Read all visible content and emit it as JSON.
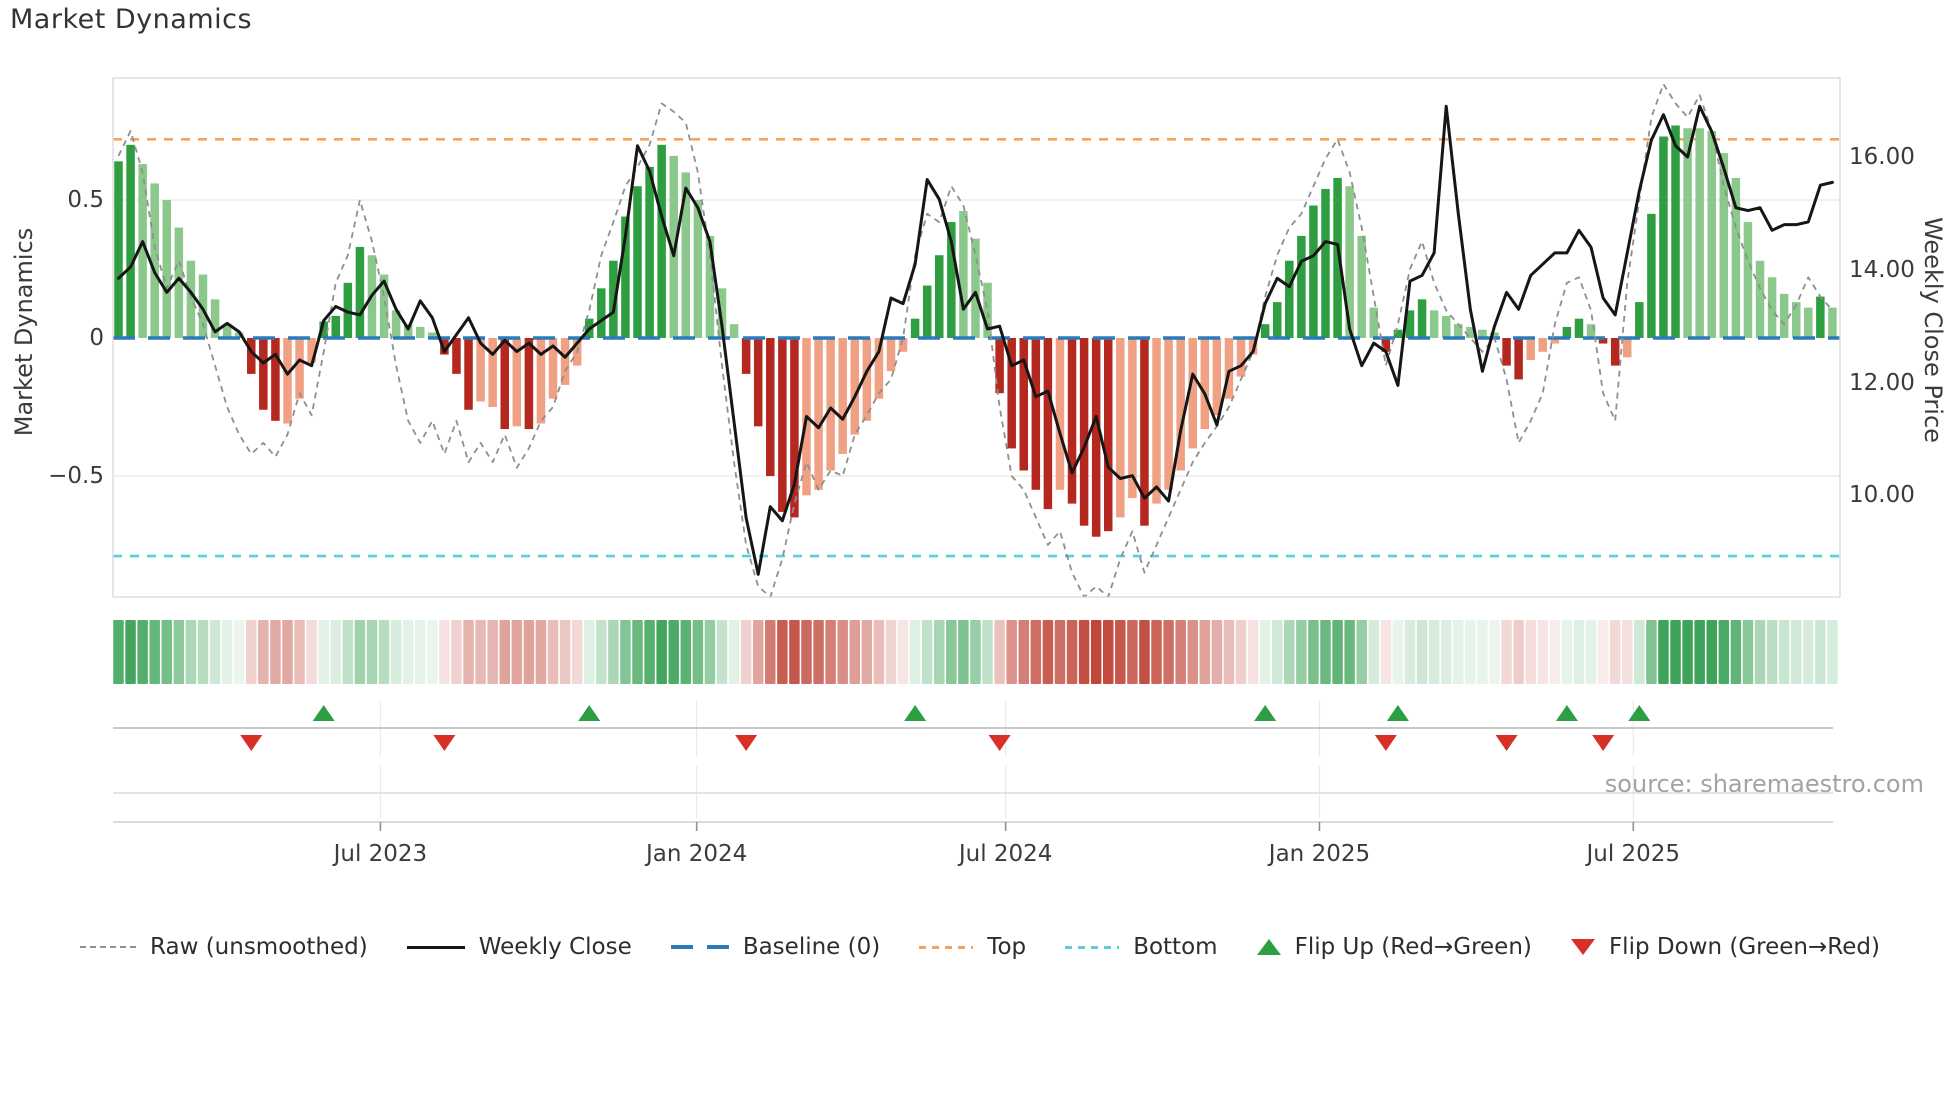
{
  "title": "Market Dynamics",
  "source": "source: sharemaestro.com",
  "axes": {
    "left_label": "Market Dynamics",
    "right_label": "Weekly Close Price",
    "left_ticks": [
      {
        "label": "0.5",
        "value": 0.5
      },
      {
        "label": "0",
        "value": 0
      },
      {
        "label": "−0.5",
        "value": -0.5
      }
    ],
    "right_ticks": [
      {
        "label": "16.00",
        "value": 16
      },
      {
        "label": "14.00",
        "value": 14
      },
      {
        "label": "12.00",
        "value": 12
      },
      {
        "label": "10.00",
        "value": 10
      }
    ],
    "x_ticks": [
      {
        "label": "Jul 2023",
        "week": 21.7
      },
      {
        "label": "Jan 2024",
        "week": 47.9
      },
      {
        "label": "Jul 2024",
        "week": 73.5
      },
      {
        "label": "Jan 2025",
        "week": 99.5
      },
      {
        "label": "Jul 2025",
        "week": 125.5
      }
    ]
  },
  "legend": {
    "items": [
      {
        "label": "Raw (unsmoothed)",
        "type": "dashed-gray-line"
      },
      {
        "label": "Weekly Close",
        "type": "solid-black-line"
      },
      {
        "label": "Baseline (0)",
        "type": "dashed-blue-line"
      },
      {
        "label": "Top",
        "type": "dotted-orange-line"
      },
      {
        "label": "Bottom",
        "type": "dotted-cyan-line"
      },
      {
        "label": "Flip Up (Red→Green)",
        "type": "green-up-triangle"
      },
      {
        "label": "Flip Down (Green→Red)",
        "type": "red-down-triangle"
      }
    ]
  },
  "colors": {
    "dark_green": "#2e9e41",
    "light_green": "#8bc88b",
    "dark_red": "#b4281f",
    "light_red": "#f0a183",
    "heat_green": "#3fa45a",
    "heat_red": "#c0473a",
    "price_line": "#161616",
    "raw_line": "#8f8f8f",
    "baseline": "#2b7bba",
    "top_line": "#f6a35c",
    "bottom_line": "#56cfe3",
    "flip_up": "#2e9e44",
    "flip_down": "#d93025",
    "grid": "#ececeb",
    "spine": "#d9d9d9"
  },
  "chart_data": {
    "type": "combo: weekly oscillator bars + heatmap strip + flip markers + price lines",
    "weeks": 143,
    "x_unit": "week",
    "baseline_value": 0,
    "top_band": 0.72,
    "bottom_band": -0.79,
    "left_axis_range": [
      -0.95,
      1.0
    ],
    "right_axis_range": [
      8.4,
      17.4
    ],
    "oscillator": [
      0.64,
      0.7,
      0.63,
      0.56,
      0.5,
      0.4,
      0.28,
      0.23,
      0.14,
      0.05,
      0.02,
      -0.13,
      -0.26,
      -0.3,
      -0.31,
      -0.22,
      -0.09,
      0.06,
      0.08,
      0.2,
      0.33,
      0.3,
      0.23,
      0.1,
      0.05,
      0.04,
      0.02,
      -0.06,
      -0.13,
      -0.26,
      -0.23,
      -0.25,
      -0.33,
      -0.32,
      -0.33,
      -0.31,
      -0.22,
      -0.17,
      -0.1,
      0.07,
      0.18,
      0.28,
      0.44,
      0.55,
      0.62,
      0.7,
      0.66,
      0.6,
      0.5,
      0.37,
      0.18,
      0.05,
      -0.13,
      -0.32,
      -0.5,
      -0.63,
      -0.65,
      -0.57,
      -0.55,
      -0.48,
      -0.42,
      -0.35,
      -0.3,
      -0.22,
      -0.12,
      -0.05,
      0.07,
      0.19,
      0.3,
      0.42,
      0.46,
      0.36,
      0.2,
      -0.2,
      -0.4,
      -0.48,
      -0.55,
      -0.62,
      -0.55,
      -0.6,
      -0.68,
      -0.72,
      -0.7,
      -0.65,
      -0.58,
      -0.68,
      -0.6,
      -0.55,
      -0.48,
      -0.4,
      -0.33,
      -0.28,
      -0.22,
      -0.14,
      -0.06,
      0.05,
      0.13,
      0.28,
      0.37,
      0.48,
      0.54,
      0.58,
      0.55,
      0.37,
      0.11,
      -0.05,
      0.03,
      0.1,
      0.14,
      0.1,
      0.08,
      0.05,
      0.04,
      0.03,
      0.02,
      -0.1,
      -0.15,
      -0.08,
      -0.05,
      -0.02,
      0.04,
      0.07,
      0.05,
      -0.02,
      -0.1,
      -0.07,
      0.13,
      0.45,
      0.73,
      0.77,
      0.76,
      0.76,
      0.75,
      0.67,
      0.58,
      0.42,
      0.28,
      0.22,
      0.16,
      0.13,
      0.11,
      0.15,
      0.11
    ],
    "shades": [
      "dg",
      "dg",
      "lg",
      "lg",
      "lg",
      "lg",
      "lg",
      "lg",
      "lg",
      "lg",
      "lg",
      "dr",
      "dr",
      "dr",
      "lr",
      "lr",
      "lr",
      "dg",
      "dg",
      "dg",
      "dg",
      "lg",
      "lg",
      "lg",
      "lg",
      "lg",
      "lg",
      "dr",
      "dr",
      "dr",
      "lr",
      "lr",
      "dr",
      "lr",
      "dr",
      "lr",
      "lr",
      "lr",
      "lr",
      "dg",
      "dg",
      "dg",
      "dg",
      "dg",
      "dg",
      "dg",
      "lg",
      "lg",
      "lg",
      "lg",
      "lg",
      "lg",
      "dr",
      "dr",
      "dr",
      "dr",
      "dr",
      "lr",
      "lr",
      "lr",
      "lr",
      "lr",
      "lr",
      "lr",
      "lr",
      "lr",
      "dg",
      "dg",
      "dg",
      "dg",
      "lg",
      "lg",
      "lg",
      "dr",
      "dr",
      "dr",
      "dr",
      "dr",
      "lr",
      "dr",
      "dr",
      "dr",
      "dr",
      "lr",
      "lr",
      "dr",
      "lr",
      "lr",
      "lr",
      "lr",
      "lr",
      "lr",
      "lr",
      "lr",
      "lr",
      "dg",
      "dg",
      "dg",
      "dg",
      "dg",
      "dg",
      "dg",
      "lg",
      "lg",
      "lg",
      "dr",
      "dg",
      "dg",
      "dg",
      "lg",
      "lg",
      "lg",
      "lg",
      "lg",
      "lg",
      "dr",
      "dr",
      "lr",
      "lr",
      "lr",
      "dg",
      "dg",
      "lg",
      "dr",
      "dr",
      "lr",
      "dg",
      "dg",
      "dg",
      "dg",
      "lg",
      "lg",
      "lg",
      "lg",
      "lg",
      "lg",
      "lg",
      "lg",
      "lg",
      "lg",
      "lg",
      "dg",
      "lg"
    ],
    "raw": [
      0.66,
      0.75,
      0.6,
      0.33,
      0.18,
      0.28,
      0.15,
      0.05,
      -0.1,
      -0.25,
      -0.35,
      -0.42,
      -0.38,
      -0.43,
      -0.35,
      -0.2,
      -0.28,
      -0.05,
      0.2,
      0.3,
      0.5,
      0.35,
      0.15,
      -0.1,
      -0.3,
      -0.38,
      -0.3,
      -0.42,
      -0.3,
      -0.45,
      -0.38,
      -0.45,
      -0.35,
      -0.47,
      -0.4,
      -0.3,
      -0.25,
      -0.12,
      -0.05,
      0.1,
      0.3,
      0.42,
      0.55,
      0.62,
      0.7,
      0.85,
      0.82,
      0.78,
      0.6,
      0.3,
      -0.1,
      -0.45,
      -0.75,
      -0.9,
      -0.94,
      -0.8,
      -0.6,
      -0.45,
      -0.55,
      -0.48,
      -0.5,
      -0.35,
      -0.28,
      -0.2,
      -0.15,
      0.0,
      0.3,
      0.45,
      0.42,
      0.55,
      0.48,
      0.3,
      0.1,
      -0.25,
      -0.5,
      -0.55,
      -0.65,
      -0.75,
      -0.7,
      -0.85,
      -0.95,
      -0.9,
      -0.95,
      -0.8,
      -0.7,
      -0.85,
      -0.75,
      -0.65,
      -0.55,
      -0.45,
      -0.38,
      -0.32,
      -0.25,
      -0.15,
      -0.05,
      0.15,
      0.3,
      0.4,
      0.45,
      0.55,
      0.65,
      0.72,
      0.6,
      0.4,
      0.15,
      -0.1,
      0.05,
      0.25,
      0.35,
      0.2,
      0.1,
      0.05,
      0.0,
      -0.05,
      0.0,
      -0.15,
      -0.38,
      -0.3,
      -0.2,
      0.05,
      0.2,
      0.22,
      0.1,
      -0.2,
      -0.3,
      0.2,
      0.5,
      0.8,
      0.92,
      0.85,
      0.8,
      0.88,
      0.75,
      0.55,
      0.4,
      0.28,
      0.18,
      0.1,
      0.05,
      0.12,
      0.22,
      0.15,
      0.1
    ],
    "weekly_close": [
      13.85,
      14.05,
      14.5,
      13.95,
      13.6,
      13.85,
      13.6,
      13.3,
      12.9,
      13.05,
      12.9,
      12.55,
      12.35,
      12.5,
      12.15,
      12.4,
      12.3,
      13.1,
      13.35,
      13.25,
      13.2,
      13.55,
      13.8,
      13.3,
      12.95,
      13.45,
      13.15,
      12.55,
      12.85,
      13.15,
      12.7,
      12.5,
      12.75,
      12.55,
      12.7,
      12.5,
      12.65,
      12.45,
      12.7,
      12.95,
      13.1,
      13.25,
      14.6,
      16.2,
      15.75,
      14.95,
      14.25,
      15.45,
      15.1,
      14.5,
      13.0,
      11.3,
      9.6,
      8.6,
      9.8,
      9.55,
      10.2,
      11.4,
      11.2,
      11.55,
      11.35,
      11.75,
      12.2,
      12.55,
      13.5,
      13.4,
      14.1,
      15.6,
      15.25,
      14.5,
      13.3,
      13.6,
      12.95,
      13.0,
      12.3,
      12.4,
      11.75,
      11.85,
      11.1,
      10.4,
      10.85,
      11.4,
      10.5,
      10.3,
      10.35,
      9.95,
      10.15,
      9.9,
      11.15,
      12.15,
      11.8,
      11.25,
      12.2,
      12.3,
      12.55,
      13.4,
      13.85,
      13.7,
      14.15,
      14.25,
      14.5,
      14.45,
      12.95,
      12.3,
      12.7,
      12.55,
      11.95,
      13.8,
      13.9,
      14.3,
      16.9,
      15.0,
      13.3,
      12.2,
      13.0,
      13.6,
      13.3,
      13.9,
      14.1,
      14.3,
      14.3,
      14.7,
      14.4,
      13.5,
      13.2,
      14.3,
      15.4,
      16.3,
      16.75,
      16.2,
      16.0,
      16.9,
      16.45,
      15.8,
      15.1,
      15.05,
      15.1,
      14.7,
      14.8,
      14.8,
      14.85,
      15.5,
      15.55
    ],
    "flip_up_weeks": [
      17,
      39,
      66,
      95,
      106,
      120,
      126
    ],
    "flip_down_weeks": [
      11,
      27,
      52,
      73,
      105,
      115,
      123
    ]
  }
}
